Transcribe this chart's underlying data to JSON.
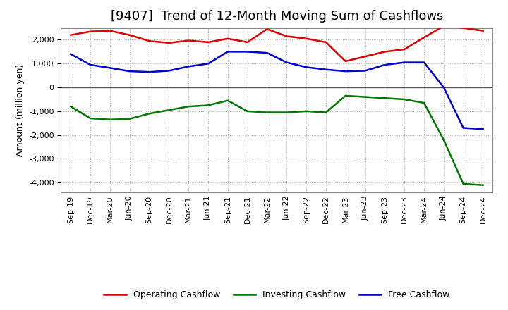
{
  "title": "[9407]  Trend of 12-Month Moving Sum of Cashflows",
  "ylabel": "Amount (million yen)",
  "xlabels": [
    "Sep-19",
    "Dec-19",
    "Mar-20",
    "Jun-20",
    "Sep-20",
    "Dec-20",
    "Mar-21",
    "Jun-21",
    "Sep-21",
    "Dec-21",
    "Mar-22",
    "Jun-22",
    "Sep-22",
    "Dec-22",
    "Mar-23",
    "Jun-23",
    "Sep-23",
    "Dec-23",
    "Mar-24",
    "Jun-24",
    "Sep-24",
    "Dec-24"
  ],
  "operating": [
    2200,
    2350,
    2380,
    2200,
    1950,
    1870,
    1970,
    1900,
    2050,
    1900,
    2450,
    2150,
    2050,
    1900,
    1100,
    1300,
    1500,
    1600,
    2100,
    2580,
    2500,
    2380
  ],
  "investing": [
    -800,
    -1300,
    -1350,
    -1320,
    -1100,
    -950,
    -800,
    -750,
    -550,
    -1000,
    -1050,
    -1050,
    -1000,
    -1050,
    -350,
    -400,
    -450,
    -500,
    -650,
    -2200,
    -4050,
    -4100
  ],
  "free": [
    1400,
    950,
    820,
    680,
    650,
    700,
    880,
    1000,
    1500,
    1500,
    1450,
    1050,
    850,
    750,
    680,
    700,
    950,
    1050,
    1050,
    0,
    -1700,
    -1750
  ],
  "ylim": [
    -4400,
    2500
  ],
  "yticks": [
    -4000,
    -3000,
    -2000,
    -1000,
    0,
    1000,
    2000
  ],
  "operating_color": "#dd0000",
  "investing_color": "#007700",
  "free_color": "#0000cc",
  "bg_color": "#ffffff",
  "plot_bg_color": "#ffffff",
  "grid_color": "#aaaaaa",
  "zero_line_color": "#555555",
  "title_fontsize": 13,
  "axis_label_fontsize": 9,
  "tick_fontsize": 8,
  "legend_fontsize": 9,
  "linewidth": 1.8
}
